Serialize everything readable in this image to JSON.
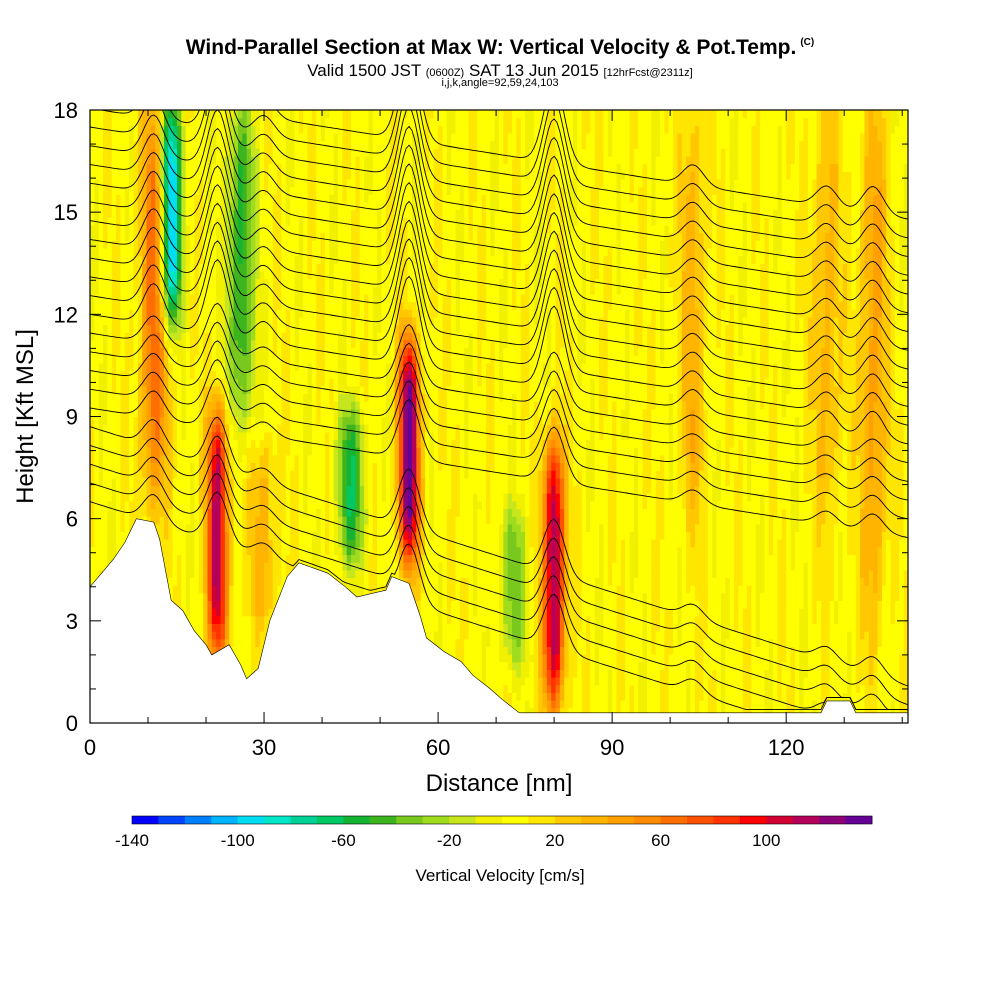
{
  "header": {
    "title": "Wind-Parallel Section at Max W: Vertical Velocity & Pot.Temp.",
    "copyright_mark": "(C)",
    "subtitle_main": "Valid 1500 JST",
    "subtitle_utc": "(0600Z)",
    "subtitle_date": "SAT 13 Jun 2015",
    "subtitle_fcst": "[12hrFcst@2311z]",
    "indices_line": "i,j,k,angle=92,59,24,103"
  },
  "chart_data": {
    "type": "heatmap",
    "title": "Wind-Parallel Section at Max W: Vertical Velocity & Pot.Temp.",
    "xlabel": "Distance [nm]",
    "ylabel": "Height [Kft MSL]",
    "xlim": [
      0,
      141
    ],
    "ylim": [
      0,
      18
    ],
    "x_ticks": [
      "0",
      "30",
      "60",
      "90",
      "120"
    ],
    "y_ticks": [
      "0",
      "3",
      "6",
      "9",
      "12",
      "15",
      "18"
    ],
    "colorbar": {
      "label": "Vertical Velocity [cm/s]",
      "range": [
        -140,
        140
      ],
      "step": 10,
      "tick_labels": [
        "-140",
        "-100",
        "-60",
        "-20",
        "20",
        "60",
        "100"
      ],
      "colors": [
        "#0000ff",
        "#0044ff",
        "#0080ff",
        "#00b4ff",
        "#00dcf0",
        "#00e6c8",
        "#00d296",
        "#00c864",
        "#14b432",
        "#3cb41e",
        "#78c81e",
        "#a0dc1e",
        "#c8e61e",
        "#f0f000",
        "#ffff00",
        "#ffe600",
        "#ffc800",
        "#ffb400",
        "#ffa000",
        "#ff8c00",
        "#ff6e00",
        "#ff5000",
        "#ff3200",
        "#ff0000",
        "#d20032",
        "#b4005a",
        "#8c0078",
        "#640096"
      ]
    },
    "shaded_field": "vertical velocity (cm/s)",
    "contour_field": "potential temperature",
    "updraft_max": [
      {
        "x": 11,
        "z_range": [
          6.5,
          18
        ],
        "peak_w": 60
      },
      {
        "x": 22,
        "z_range": [
          2.2,
          9
        ],
        "peak_w": 110
      },
      {
        "x": 30,
        "z_range": [
          3,
          8
        ],
        "peak_w": 30
      },
      {
        "x": 55,
        "z_range": [
          5,
          11
        ],
        "peak_w": 130
      },
      {
        "x": 80,
        "z_range": [
          0.8,
          8
        ],
        "peak_w": 120
      },
      {
        "x": 104,
        "z_range": [
          6,
          18
        ],
        "peak_w": 30
      },
      {
        "x": 127,
        "z_range": [
          6,
          18
        ],
        "peak_w": 30
      },
      {
        "x": 135,
        "z_range": [
          3,
          18
        ],
        "peak_w": 40
      }
    ],
    "downdraft_min": [
      {
        "x": 14,
        "z_range": [
          12,
          18
        ],
        "peak_w": -110
      },
      {
        "x": 26,
        "z_range": [
          9,
          18
        ],
        "peak_w": -60
      },
      {
        "x": 45,
        "z_range": [
          5,
          9
        ],
        "peak_w": -60
      },
      {
        "x": 73,
        "z_range": [
          2,
          6
        ],
        "peak_w": -40
      }
    ],
    "terrain_top_kft": [
      [
        0,
        4.0
      ],
      [
        2,
        4.4
      ],
      [
        4,
        4.8
      ],
      [
        6,
        5.3
      ],
      [
        8,
        6.0
      ],
      [
        11,
        5.9
      ],
      [
        12,
        5.4
      ],
      [
        13,
        4.5
      ],
      [
        14,
        3.6
      ],
      [
        16,
        3.3
      ],
      [
        17,
        3.0
      ],
      [
        18,
        2.7
      ],
      [
        19,
        2.5
      ],
      [
        20,
        2.3
      ],
      [
        21,
        2.0
      ],
      [
        24,
        2.3
      ],
      [
        26,
        1.7
      ],
      [
        27,
        1.3
      ],
      [
        29,
        1.6
      ],
      [
        31,
        3.0
      ],
      [
        34,
        4.3
      ],
      [
        36,
        4.7
      ],
      [
        41,
        4.4
      ],
      [
        44,
        4.0
      ],
      [
        46,
        3.7
      ],
      [
        51,
        3.9
      ],
      [
        52,
        4.3
      ],
      [
        55,
        4.1
      ],
      [
        56,
        3.6
      ],
      [
        57,
        3.1
      ],
      [
        58,
        2.5
      ],
      [
        61,
        2.1
      ],
      [
        64,
        1.8
      ],
      [
        66,
        1.4
      ],
      [
        69,
        1.0
      ],
      [
        71,
        0.7
      ],
      [
        74,
        0.3
      ],
      [
        126,
        0.3
      ],
      [
        127,
        0.65
      ],
      [
        131,
        0.65
      ],
      [
        132,
        0.3
      ],
      [
        141,
        0.3
      ]
    ]
  }
}
